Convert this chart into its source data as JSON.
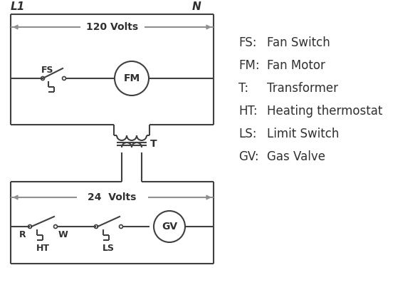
{
  "bg_color": "#ffffff",
  "line_color": "#404040",
  "legend_color": "#303030",
  "arrow_color": "#909090",
  "legend": [
    [
      "FS:",
      "Fan Switch"
    ],
    [
      "FM:",
      "Fan Motor"
    ],
    [
      "T:",
      "Transformer"
    ],
    [
      "HT:",
      "Heating thermostat"
    ],
    [
      "LS:",
      "Limit Switch"
    ],
    [
      "GV:",
      "Gas Valve"
    ]
  ],
  "volts_120": "120 Volts",
  "volts_24": "24  Volts",
  "L1": "L1",
  "N": "N"
}
